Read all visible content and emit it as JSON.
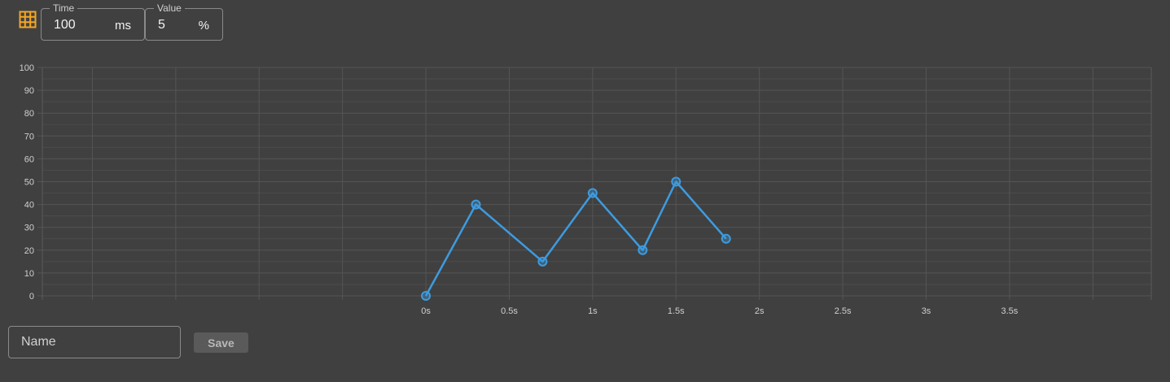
{
  "toolbar": {
    "grid_icon": "grid-icon",
    "time": {
      "label": "Time",
      "value": "100",
      "unit": "ms"
    },
    "value": {
      "label": "Value",
      "value": "5",
      "unit": "%"
    }
  },
  "chart_data": {
    "type": "line",
    "x_unit": "s",
    "x": [
      0,
      0.3,
      0.7,
      1.0,
      1.3,
      1.5,
      1.8
    ],
    "series": [
      {
        "values": [
          0,
          40,
          15,
          45,
          20,
          50,
          25
        ],
        "color": "#3d9be0"
      }
    ],
    "xlim": [
      -2.3,
      4.35
    ],
    "ylim": [
      0,
      100
    ],
    "x_ticks": [
      0,
      0.5,
      1,
      1.5,
      2,
      2.5,
      3,
      3.5
    ],
    "x_tick_labels": [
      "0s",
      "0.5s",
      "1s",
      "1.5s",
      "2s",
      "2.5s",
      "3s",
      "3.5s"
    ],
    "y_ticks": [
      0,
      10,
      20,
      30,
      40,
      50,
      60,
      70,
      80,
      90,
      100
    ],
    "grid": true
  },
  "footer": {
    "name_placeholder": "Name",
    "save_label": "Save"
  },
  "colors": {
    "background": "#404040",
    "accent_icon": "#f5a623",
    "line": "#3d9be0"
  }
}
